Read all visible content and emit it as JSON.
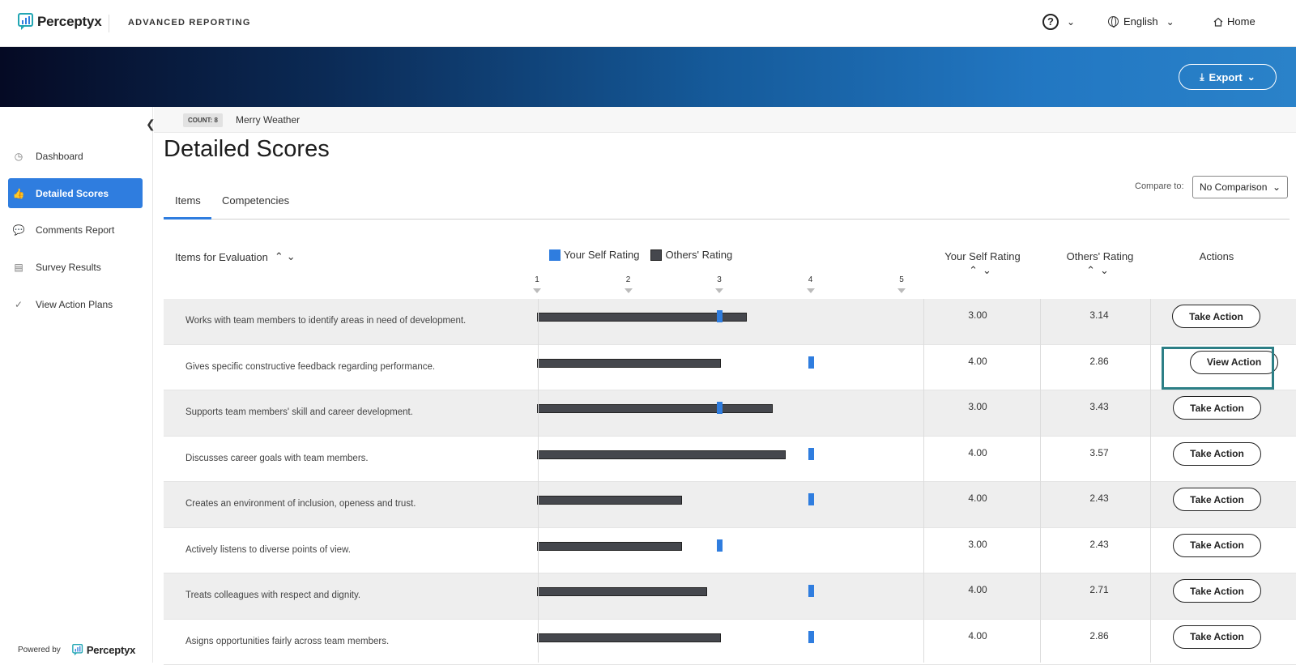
{
  "app": {
    "brand": "Perceptyx",
    "product": "ADVANCED REPORTING",
    "help": "?",
    "language": "English",
    "home": "Home",
    "export": "Export"
  },
  "sidebar": {
    "items": [
      {
        "label": "Dashboard",
        "icon": "gauge-icon"
      },
      {
        "label": "Detailed Scores",
        "icon": "thumbs-up-icon",
        "active": true
      },
      {
        "label": "Comments Report",
        "icon": "chat-bubbles-icon"
      },
      {
        "label": "Survey Results",
        "icon": "bar-chart-icon"
      },
      {
        "label": "View Action Plans",
        "icon": "check-circle-icon"
      }
    ],
    "powered_by": "Powered by",
    "powered_brand": "Perceptyx"
  },
  "filter": {
    "count": "COUNT: 8",
    "name": "Merry Weather"
  },
  "page": {
    "title": "Detailed Scores"
  },
  "tabs": [
    {
      "label": "Items",
      "active": true
    },
    {
      "label": "Competencies",
      "active": false
    }
  ],
  "compare": {
    "label": "Compare to:",
    "value": "No Comparison"
  },
  "table": {
    "col_items": "Items for Evaluation",
    "legend_self": "Your Self Rating",
    "legend_others": "Others' Rating",
    "col_self": "Your Self Rating",
    "col_others": "Others' Rating",
    "col_actions": "Actions",
    "scale": [
      "1",
      "2",
      "3",
      "4",
      "5"
    ],
    "rows": [
      {
        "label": "Works with team members to identify areas in need of development.",
        "self": "3.00",
        "others": "3.14",
        "action": "Take Action"
      },
      {
        "label": "Gives specific constructive feedback regarding performance.",
        "self": "4.00",
        "others": "2.86",
        "action": "View Action"
      },
      {
        "label": "Supports team members' skill and career development.",
        "self": "3.00",
        "others": "3.43",
        "action": "Take Action"
      },
      {
        "label": "Discusses career goals with team members.",
        "self": "4.00",
        "others": "3.57",
        "action": "Take Action"
      },
      {
        "label": "Creates an environment of inclusion, openess and trust.",
        "self": "4.00",
        "others": "2.43",
        "action": "Take Action"
      },
      {
        "label": "Actively listens to diverse points of view.",
        "self": "3.00",
        "others": "2.43",
        "action": "Take Action"
      },
      {
        "label": "Treats colleagues with respect and dignity.",
        "self": "4.00",
        "others": "2.71",
        "action": "Take Action"
      },
      {
        "label": "Asigns opportunities fairly across team members.",
        "self": "4.00",
        "others": "2.86",
        "action": "Take Action"
      }
    ]
  },
  "colors": {
    "accent": "#2f7ddf",
    "others_bar": "#45474d",
    "highlight": "#2c7f86"
  }
}
